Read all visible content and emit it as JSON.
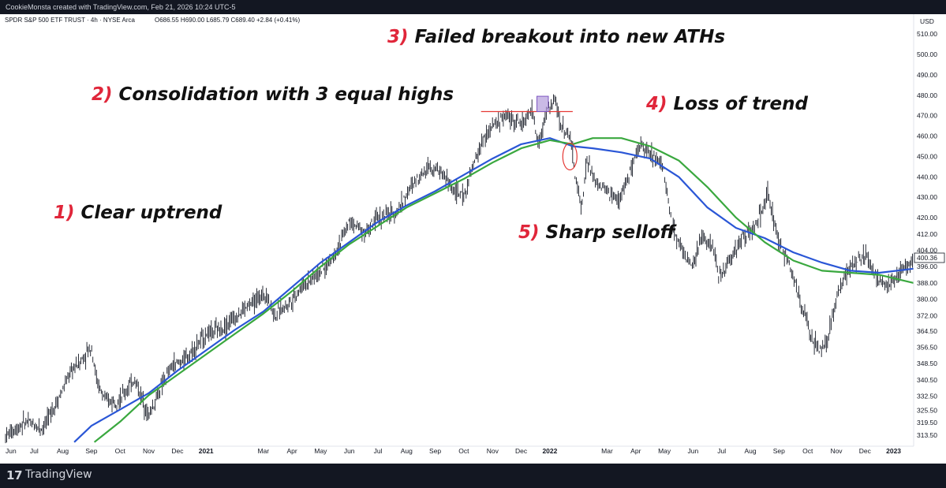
{
  "header": {
    "credit": "CookieMonsta created with TradingView.com, Feb 21, 2026 10:24 UTC-5"
  },
  "footer": {
    "brand": "TradingView"
  },
  "chart_data": {
    "type": "candlestick",
    "title": "SPDR S&P 500 ETF TRUST · 4h · NYSE Arca",
    "ohlc_text": "O686.55 H690.00 L685.79 C689.40 +2.84 (+0.41%)",
    "currency": "USD",
    "last_price_label": "400.36",
    "ylim": [
      308,
      512
    ],
    "y_ticks": [
      "313.50",
      "319.50",
      "325.50",
      "332.50",
      "340.50",
      "348.50",
      "356.50",
      "364.50",
      "372.00",
      "380.00",
      "388.00",
      "396.00",
      "404.00",
      "412.00",
      "420.00",
      "430.00",
      "440.00",
      "450.00",
      "460.00",
      "470.00",
      "480.00",
      "490.00",
      "500.00",
      "510.00"
    ],
    "x_ticks": [
      "Jun",
      "Jul",
      "Aug",
      "Sep",
      "Oct",
      "Nov",
      "Dec",
      "2021",
      "Mar",
      "Apr",
      "May",
      "Jun",
      "Jul",
      "Aug",
      "Sep",
      "Oct",
      "Nov",
      "Dec",
      "2022",
      "Mar",
      "Apr",
      "May",
      "Jun",
      "Jul",
      "Aug",
      "Sep",
      "Oct",
      "Nov",
      "Dec",
      "2023"
    ],
    "x_tick_offsets": [
      0,
      1,
      2,
      3,
      4,
      5,
      6,
      7,
      9,
      10,
      11,
      12,
      13,
      14,
      15,
      16,
      17,
      18,
      19,
      21,
      22,
      23,
      24,
      25,
      26,
      27,
      28,
      29,
      30,
      31
    ],
    "months_span": [
      0,
      31.7
    ],
    "price_path": [
      [
        0,
        313
      ],
      [
        0.7,
        320
      ],
      [
        1.3,
        317
      ],
      [
        1.8,
        330
      ],
      [
        2.3,
        345
      ],
      [
        2.7,
        351
      ],
      [
        3,
        357
      ],
      [
        3.2,
        339
      ],
      [
        3.5,
        330
      ],
      [
        4,
        331
      ],
      [
        4.5,
        341
      ],
      [
        5,
        323
      ],
      [
        5.4,
        336
      ],
      [
        5.8,
        347
      ],
      [
        6.3,
        351
      ],
      [
        7,
        363
      ],
      [
        7.6,
        366
      ],
      [
        8.3,
        375
      ],
      [
        9.1,
        383
      ],
      [
        9.4,
        372
      ],
      [
        10,
        380
      ],
      [
        10.4,
        387
      ],
      [
        11.2,
        396
      ],
      [
        11.7,
        408
      ],
      [
        12,
        418
      ],
      [
        12.6,
        413
      ],
      [
        13,
        420
      ],
      [
        13.6,
        422
      ],
      [
        14.3,
        438
      ],
      [
        14.8,
        446
      ],
      [
        15.3,
        441
      ],
      [
        15.6,
        434
      ],
      [
        16,
        430
      ],
      [
        16.3,
        444
      ],
      [
        16.6,
        456
      ],
      [
        17,
        465
      ],
      [
        17.5,
        470
      ],
      [
        18,
        466
      ],
      [
        18.4,
        472
      ],
      [
        18.6,
        455
      ],
      [
        18.9,
        473
      ],
      [
        19.2,
        477
      ],
      [
        19.4,
        465
      ],
      [
        19.7,
        460
      ],
      [
        19.95,
        435
      ],
      [
        20.1,
        425
      ],
      [
        20.3,
        448
      ],
      [
        20.6,
        437
      ],
      [
        21,
        433
      ],
      [
        21.4,
        428
      ],
      [
        21.8,
        442
      ],
      [
        22,
        449
      ],
      [
        22.2,
        457
      ],
      [
        22.5,
        451
      ],
      [
        22.9,
        448
      ],
      [
        23.3,
        415
      ],
      [
        23.6,
        405
      ],
      [
        24,
        395
      ],
      [
        24.3,
        411
      ],
      [
        24.7,
        406
      ],
      [
        24.9,
        390
      ],
      [
        25.3,
        400
      ],
      [
        25.7,
        410
      ],
      [
        26.1,
        414
      ],
      [
        26.5,
        426
      ],
      [
        26.6,
        432
      ],
      [
        27,
        407
      ],
      [
        27.4,
        396
      ],
      [
        27.8,
        377
      ],
      [
        28.1,
        362
      ],
      [
        28.4,
        355
      ],
      [
        28.7,
        360
      ],
      [
        29,
        381
      ],
      [
        29.4,
        394
      ],
      [
        29.8,
        400
      ],
      [
        30.1,
        401
      ],
      [
        30.4,
        390
      ],
      [
        30.8,
        387
      ],
      [
        31.3,
        394
      ],
      [
        31.7,
        399
      ]
    ],
    "series": [
      {
        "name": "MA blue",
        "color": "#2a56d6",
        "points": [
          [
            2.4,
            310
          ],
          [
            3,
            318
          ],
          [
            4,
            326
          ],
          [
            5,
            334
          ],
          [
            6,
            345
          ],
          [
            7,
            355
          ],
          [
            8,
            365
          ],
          [
            9,
            374
          ],
          [
            10,
            386
          ],
          [
            11,
            398
          ],
          [
            12,
            408
          ],
          [
            13,
            418
          ],
          [
            14,
            426
          ],
          [
            15,
            433
          ],
          [
            16,
            441
          ],
          [
            17,
            449
          ],
          [
            18,
            456
          ],
          [
            19,
            459
          ],
          [
            19.8,
            455
          ],
          [
            20.5,
            454
          ],
          [
            21.5,
            452
          ],
          [
            22.5,
            449
          ],
          [
            23.5,
            440
          ],
          [
            24.5,
            425
          ],
          [
            25.5,
            415
          ],
          [
            26.5,
            410
          ],
          [
            27.5,
            403
          ],
          [
            28.5,
            398
          ],
          [
            29.5,
            394
          ],
          [
            30.5,
            393
          ],
          [
            31.7,
            395
          ]
        ]
      },
      {
        "name": "MA green",
        "color": "#3aa83f",
        "points": [
          [
            3.1,
            310
          ],
          [
            4,
            320
          ],
          [
            5,
            333
          ],
          [
            6,
            343
          ],
          [
            7,
            353
          ],
          [
            8,
            363
          ],
          [
            9,
            373
          ],
          [
            10,
            384
          ],
          [
            11,
            396
          ],
          [
            12,
            407
          ],
          [
            13,
            416
          ],
          [
            14,
            425
          ],
          [
            15,
            432
          ],
          [
            16,
            439
          ],
          [
            17,
            447
          ],
          [
            18,
            454
          ],
          [
            19,
            458
          ],
          [
            19.8,
            456
          ],
          [
            20.5,
            459
          ],
          [
            21.5,
            459
          ],
          [
            22.5,
            455
          ],
          [
            23.5,
            448
          ],
          [
            24.5,
            435
          ],
          [
            25.5,
            420
          ],
          [
            26.5,
            408
          ],
          [
            27.5,
            399
          ],
          [
            28.5,
            394
          ],
          [
            29.5,
            393
          ],
          [
            30.5,
            392
          ],
          [
            31.7,
            388
          ]
        ]
      }
    ],
    "annotations": [
      {
        "num": "1)",
        "text": "Clear uptrend"
      },
      {
        "num": "2)",
        "text": "Consolidation with 3 equal highs"
      },
      {
        "num": "3)",
        "text": "Failed breakout into new ATHs"
      },
      {
        "num": "4)",
        "text": "Loss of trend"
      },
      {
        "num": "5)",
        "text": "Sharp selloff"
      }
    ],
    "resistance_level": 472,
    "breakout_box": {
      "x0": 18.55,
      "x1": 18.95,
      "y0": 472,
      "y1": 479.5
    },
    "breakdown_marker": {
      "x": 19.7,
      "y": 450
    },
    "colors": {
      "candle": "#131722",
      "annotation_num": "#e0263a",
      "resistance": "#e53935",
      "box_fill": "#b39ddb",
      "box_stroke": "#7e57c2"
    }
  }
}
